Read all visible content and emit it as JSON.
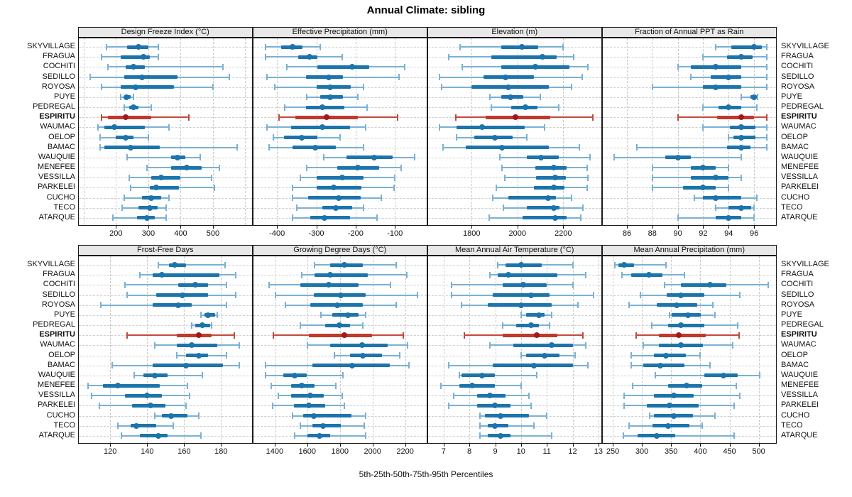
{
  "chart_data": {
    "type": "dotplot-percentiles",
    "title": "Annual Climate: sibling",
    "caption": "5th-25th-50th-75th-95th Percentiles",
    "percentiles": [
      5,
      25,
      50,
      75,
      95
    ],
    "highlight_site": "ESPIRITU",
    "sites": [
      "SKYVILLAGE",
      "FRAGUA",
      "COCHITI",
      "SEDILLO",
      "ROYOSA",
      "PUYE",
      "PEDREGAL",
      "ESPIRITU",
      "WAUMAC",
      "OELOP",
      "BAMAC",
      "WAUQUIE",
      "MENEFEE",
      "VESSILLA",
      "PARKELEI",
      "CUCHO",
      "TECO",
      "ATARQUE"
    ],
    "colors": {
      "series": "#1c74ad",
      "series_light": "#7ab1d4",
      "highlight": "#c0392b",
      "highlight_light": "#c4483c",
      "highlight_dot": "#a11a1a",
      "grid": "#cccccc",
      "header_bg": "#e8e8e8",
      "border": "#1a1a1a"
    },
    "panels": [
      {
        "title": "Design Freeze Index (°C)",
        "row": 0,
        "col": 0,
        "xlim": [
          85,
          620
        ],
        "ticks": [
          200,
          300,
          400,
          500
        ],
        "grid_step": 100,
        "values": [
          [
            170,
            235,
            270,
            300,
            330
          ],
          [
            155,
            215,
            285,
            305,
            330
          ],
          [
            175,
            230,
            255,
            290,
            530
          ],
          [
            120,
            225,
            280,
            390,
            550
          ],
          [
            155,
            215,
            260,
            380,
            500
          ],
          [
            215,
            225,
            232,
            245,
            255
          ],
          [
            225,
            240,
            255,
            270,
            310
          ],
          [
            155,
            175,
            230,
            310,
            425
          ],
          [
            145,
            165,
            195,
            290,
            365
          ],
          [
            150,
            200,
            230,
            255,
            300
          ],
          [
            150,
            165,
            245,
            335,
            575
          ],
          [
            235,
            370,
            390,
            415,
            460
          ],
          [
            295,
            370,
            420,
            465,
            520
          ],
          [
            240,
            310,
            340,
            400,
            495
          ],
          [
            245,
            305,
            325,
            395,
            505
          ],
          [
            225,
            280,
            310,
            340,
            365
          ],
          [
            220,
            270,
            305,
            330,
            355
          ],
          [
            190,
            265,
            295,
            320,
            355
          ]
        ]
      },
      {
        "title": "Effective Precipitation (mm)",
        "row": 0,
        "col": 1,
        "xlim": [
          -460,
          -20
        ],
        "ticks": [
          -400,
          -300,
          -200,
          -100
        ],
        "grid_step": 100,
        "values": [
          [
            -430,
            -390,
            -360,
            -335,
            -290
          ],
          [
            -430,
            -347,
            -318,
            -297,
            -235
          ],
          [
            -375,
            -297,
            -209,
            -165,
            -75
          ],
          [
            -425,
            -326,
            -268,
            -232,
            -90
          ],
          [
            -405,
            -300,
            -265,
            -212,
            -180
          ],
          [
            -325,
            -291,
            -265,
            -232,
            -194
          ],
          [
            -380,
            -326,
            -285,
            -229,
            -170
          ],
          [
            -395,
            -353,
            -274,
            -194,
            -94
          ],
          [
            -425,
            -365,
            -285,
            -215,
            -175
          ],
          [
            -410,
            -382,
            -338,
            -297,
            -240
          ],
          [
            -420,
            -360,
            -303,
            -250,
            -180
          ],
          [
            -282,
            -224,
            -153,
            -105,
            -50
          ],
          [
            -325,
            -247,
            -194,
            -141,
            -85
          ],
          [
            -340,
            -300,
            -235,
            -179,
            -100
          ],
          [
            -360,
            -300,
            -256,
            -185,
            -103
          ],
          [
            -360,
            -320,
            -244,
            -188,
            -135
          ],
          [
            -350,
            -285,
            -250,
            -209,
            -180
          ],
          [
            -360,
            -315,
            -280,
            -215,
            -145
          ]
        ]
      },
      {
        "title": "Elevation (m)",
        "row": 0,
        "col": 2,
        "xlim": [
          1610,
          2365
        ],
        "ticks": [
          1800,
          2000,
          2200
        ],
        "grid_step": 200,
        "values": [
          [
            1750,
            1930,
            2020,
            2090,
            2200
          ],
          [
            1700,
            1887,
            2108,
            2170,
            2245
          ],
          [
            1760,
            1928,
            2077,
            2228,
            2308
          ],
          [
            1660,
            1851,
            1949,
            2072,
            2282
          ],
          [
            1670,
            1800,
            1959,
            2138,
            2236
          ],
          [
            1880,
            1928,
            1969,
            2026,
            2100
          ],
          [
            1885,
            1974,
            2036,
            2087,
            2180
          ],
          [
            1730,
            1862,
            1990,
            2144,
            2330
          ],
          [
            1660,
            1733,
            1846,
            2031,
            2120
          ],
          [
            1735,
            1810,
            1903,
            1979,
            2040
          ],
          [
            1675,
            1774,
            1933,
            2138,
            2270
          ],
          [
            1923,
            2041,
            2103,
            2179,
            2318
          ],
          [
            1933,
            2077,
            2159,
            2215,
            2303
          ],
          [
            1944,
            2082,
            2164,
            2210,
            2308
          ],
          [
            1908,
            2072,
            2159,
            2205,
            2303
          ],
          [
            1892,
            1959,
            2133,
            2169,
            2236
          ],
          [
            1938,
            2041,
            2159,
            2185,
            2287
          ],
          [
            1877,
            2021,
            2164,
            2215,
            2277
          ]
        ]
      },
      {
        "title": "Fraction of Annual PPT as Rain",
        "row": 0,
        "col": 3,
        "xlim": [
          84.1,
          97.7
        ],
        "ticks": [
          86,
          88,
          90,
          92,
          94,
          96
        ],
        "grid_step": 2,
        "values": [
          [
            93,
            94.2,
            96,
            96.6,
            97
          ],
          [
            92,
            93.9,
            95,
            95.9,
            97
          ],
          [
            90,
            91,
            93,
            95,
            97
          ],
          [
            91,
            92.6,
            94,
            95,
            97
          ],
          [
            88,
            92,
            93,
            95,
            97
          ],
          [
            95,
            95.7,
            96,
            96.2,
            96.3
          ],
          [
            92,
            93.2,
            94,
            95,
            96.2
          ],
          [
            90,
            93.1,
            95,
            96,
            97
          ],
          [
            92,
            94.1,
            95,
            96.1,
            97
          ],
          [
            94,
            94.4,
            95,
            96.1,
            97
          ],
          [
            86.8,
            93.9,
            95,
            95.7,
            97
          ],
          [
            85,
            89,
            90,
            91,
            95
          ],
          [
            88,
            91,
            92,
            93,
            94
          ],
          [
            88,
            91,
            93,
            94,
            95
          ],
          [
            88,
            90.4,
            92,
            93,
            94
          ],
          [
            91.3,
            92,
            93,
            95,
            96.2
          ],
          [
            93,
            94,
            95,
            95.8,
            96
          ],
          [
            90,
            93,
            94,
            95,
            96
          ]
        ]
      },
      {
        "title": "Frost-Free Days",
        "row": 1,
        "col": 0,
        "xlim": [
          103,
          196.6
        ],
        "ticks": [
          120,
          140,
          160,
          180
        ],
        "grid_step": 20,
        "values": [
          [
            146,
            152,
            155,
            161,
            182
          ],
          [
            136,
            143,
            148,
            179,
            188
          ],
          [
            128,
            157,
            166,
            173,
            183
          ],
          [
            129,
            145,
            159,
            173,
            188
          ],
          [
            115,
            143,
            157,
            164,
            183
          ],
          [
            169,
            171,
            173,
            177,
            178
          ],
          [
            164,
            166,
            170,
            174,
            175
          ],
          [
            129,
            156,
            168,
            175,
            187
          ],
          [
            144,
            156,
            164,
            178,
            190
          ],
          [
            156,
            161,
            168,
            173,
            183
          ],
          [
            121,
            143,
            161,
            181,
            190
          ],
          [
            133,
            138,
            144,
            151,
            170
          ],
          [
            108,
            116,
            124,
            147,
            162
          ],
          [
            110,
            128,
            140,
            148,
            163
          ],
          [
            114,
            132,
            142,
            150,
            161
          ],
          [
            144,
            148,
            153,
            162,
            168
          ],
          [
            124,
            131,
            134,
            145,
            154
          ],
          [
            126,
            136,
            146,
            151,
            169
          ]
        ]
      },
      {
        "title": "Growing Degree Days (°C)",
        "row": 1,
        "col": 1,
        "xlim": [
          1270,
          2330
        ],
        "ticks": [
          1400,
          1600,
          1800,
          2000,
          2200
        ],
        "grid_step": 200,
        "values": [
          [
            1645,
            1739,
            1826,
            1941,
            2144
          ],
          [
            1566,
            1645,
            1739,
            1970,
            2209
          ],
          [
            1364,
            1559,
            1732,
            1913,
            2108
          ],
          [
            1407,
            1638,
            1804,
            1956,
            2274
          ],
          [
            1465,
            1617,
            1783,
            1941,
            2144
          ],
          [
            1682,
            1754,
            1848,
            1913,
            1956
          ],
          [
            1559,
            1710,
            1797,
            1862,
            1941
          ],
          [
            1393,
            1609,
            1826,
            1999,
            2187
          ],
          [
            1602,
            1739,
            1934,
            2093,
            2216
          ],
          [
            1768,
            1862,
            1941,
            2057,
            2165
          ],
          [
            1342,
            1631,
            1877,
            2108,
            2223
          ],
          [
            1342,
            1451,
            1523,
            1595,
            1819
          ],
          [
            1378,
            1501,
            1566,
            1645,
            1775
          ],
          [
            1422,
            1501,
            1617,
            1703,
            1812
          ],
          [
            1386,
            1516,
            1609,
            1710,
            1826
          ],
          [
            1508,
            1573,
            1638,
            1869,
            1956
          ],
          [
            1559,
            1631,
            1696,
            1804,
            1949
          ],
          [
            1523,
            1602,
            1674,
            1739,
            1956
          ]
        ]
      },
      {
        "title": "Mean Annual Air Temperature (°C)",
        "row": 1,
        "col": 2,
        "xlim": [
          6.4,
          13.1
        ],
        "ticks": [
          7,
          8,
          9,
          10,
          11,
          12,
          13
        ],
        "grid_step": 1,
        "values": [
          [
            9.1,
            9.4,
            10.0,
            10.8,
            12.0
          ],
          [
            8.8,
            9.1,
            9.5,
            11.4,
            12.5
          ],
          [
            7.3,
            9.3,
            10.1,
            11.0,
            12.0
          ],
          [
            7.3,
            8.9,
            10.4,
            11.1,
            12.8
          ],
          [
            7.7,
            8.7,
            10.0,
            11.2,
            12.2
          ],
          [
            10.0,
            10.2,
            10.7,
            10.9,
            11.2
          ],
          [
            9.3,
            9.8,
            10.4,
            10.7,
            11.1
          ],
          [
            7.8,
            9.3,
            10.6,
            11.4,
            12.4
          ],
          [
            8.8,
            9.7,
            11.2,
            12.0,
            12.5
          ],
          [
            10.0,
            10.2,
            10.9,
            11.5,
            12.1
          ],
          [
            7.2,
            8.9,
            10.5,
            12.0,
            12.6
          ],
          [
            7.6,
            7.7,
            8.5,
            9.0,
            10.6
          ],
          [
            6.9,
            7.6,
            8.1,
            9.0,
            10.0
          ],
          [
            7.4,
            8.3,
            8.8,
            9.4,
            10.3
          ],
          [
            7.2,
            8.3,
            9.0,
            9.6,
            10.4
          ],
          [
            8.4,
            8.6,
            9.2,
            10.3,
            11.0
          ],
          [
            8.4,
            8.7,
            9.0,
            9.5,
            10.5
          ],
          [
            8.4,
            8.7,
            9.2,
            9.6,
            11.2
          ]
        ]
      },
      {
        "title": "Mean Annual Precipitation (mm)",
        "row": 1,
        "col": 3,
        "xlim": [
          233,
          529
        ],
        "ticks": [
          250,
          300,
          350,
          400,
          450,
          500
        ],
        "grid_step": 50,
        "values": [
          [
            254,
            260,
            270,
            286,
            341
          ],
          [
            266,
            282,
            312,
            335,
            373
          ],
          [
            339,
            367,
            417,
            444,
            516
          ],
          [
            298,
            343,
            367,
            407,
            468
          ],
          [
            278,
            325,
            359,
            395,
            421
          ],
          [
            347,
            351,
            379,
            401,
            425
          ],
          [
            317,
            345,
            367,
            407,
            464
          ],
          [
            290,
            329,
            363,
            409,
            466
          ],
          [
            302,
            329,
            367,
            405,
            456
          ],
          [
            282,
            321,
            341,
            375,
            399
          ],
          [
            282,
            302,
            331,
            373,
            417
          ],
          [
            323,
            407,
            440,
            464,
            502
          ],
          [
            284,
            345,
            377,
            403,
            462
          ],
          [
            270,
            321,
            355,
            389,
            468
          ],
          [
            270,
            308,
            347,
            397,
            458
          ],
          [
            313,
            321,
            355,
            387,
            425
          ],
          [
            278,
            318,
            345,
            381,
            403
          ],
          [
            268,
            292,
            325,
            357,
            458
          ]
        ]
      }
    ]
  }
}
